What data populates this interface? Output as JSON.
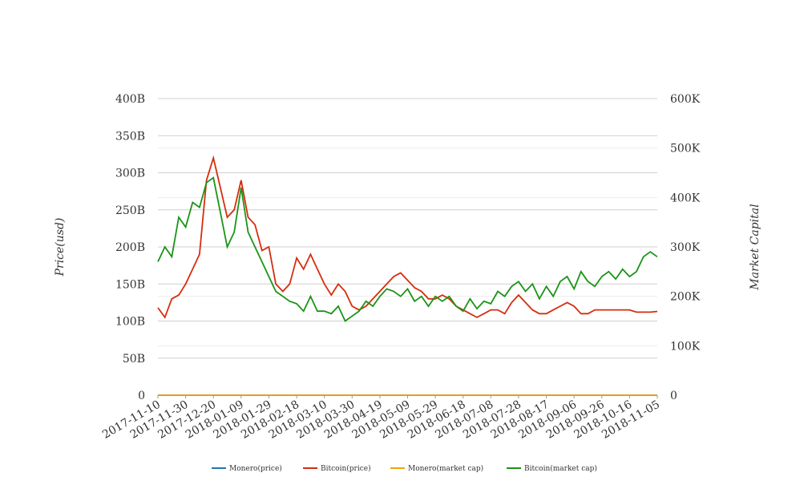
{
  "chart_data": {
    "type": "line",
    "x": [
      "2017-11-10",
      "2017-11-15",
      "2017-11-20",
      "2017-11-25",
      "2017-11-30",
      "2017-12-05",
      "2017-12-10",
      "2017-12-15",
      "2017-12-20",
      "2017-12-25",
      "2017-12-30",
      "2018-01-04",
      "2018-01-09",
      "2018-01-14",
      "2018-01-19",
      "2018-01-24",
      "2018-01-29",
      "2018-02-03",
      "2018-02-08",
      "2018-02-13",
      "2018-02-18",
      "2018-02-23",
      "2018-02-28",
      "2018-03-05",
      "2018-03-10",
      "2018-03-15",
      "2018-03-20",
      "2018-03-25",
      "2018-03-30",
      "2018-04-04",
      "2018-04-09",
      "2018-04-14",
      "2018-04-19",
      "2018-04-24",
      "2018-04-29",
      "2018-05-04",
      "2018-05-09",
      "2018-05-14",
      "2018-05-19",
      "2018-05-24",
      "2018-05-29",
      "2018-06-03",
      "2018-06-08",
      "2018-06-13",
      "2018-06-18",
      "2018-06-23",
      "2018-06-28",
      "2018-07-03",
      "2018-07-08",
      "2018-07-13",
      "2018-07-18",
      "2018-07-23",
      "2018-07-28",
      "2018-08-02",
      "2018-08-07",
      "2018-08-12",
      "2018-08-17",
      "2018-08-22",
      "2018-08-27",
      "2018-09-01",
      "2018-09-06",
      "2018-09-11",
      "2018-09-16",
      "2018-09-21",
      "2018-09-26",
      "2018-10-01",
      "2018-10-06",
      "2018-10-11",
      "2018-10-16",
      "2018-10-21",
      "2018-10-26",
      "2018-10-31",
      "2018-11-05"
    ],
    "xlim": [
      "2017-11-10",
      "2018-11-05"
    ],
    "xticks": [
      "2017-11-10",
      "2017-11-30",
      "2017-12-20",
      "2018-01-09",
      "2018-01-29",
      "2018-02-18",
      "2018-03-10",
      "2018-03-30",
      "2018-04-19",
      "2018-05-09",
      "2018-05-29",
      "2018-06-18",
      "2018-07-08",
      "2018-07-28",
      "2018-08-17",
      "2018-09-06",
      "2018-09-26",
      "2018-10-16",
      "2018-11-05"
    ],
    "ylabel": "Price(usd)",
    "y2label": "Market Capital",
    "ylim": [
      0,
      400000000000.0
    ],
    "yticks": [
      0,
      {
        "value": 50000000000.0,
        "label": "50B"
      },
      {
        "value": 100000000000.0,
        "label": "100B"
      },
      {
        "value": 150000000000.0,
        "label": "150B"
      },
      {
        "value": 200000000000.0,
        "label": "200B"
      },
      {
        "value": 250000000000.0,
        "label": "250B"
      },
      {
        "value": 300000000000.0,
        "label": "300B"
      },
      {
        "value": 350000000000.0,
        "label": "350B"
      },
      {
        "value": 400000000000.0,
        "label": "400B"
      }
    ],
    "y2lim": [
      0,
      600000.0
    ],
    "y2ticks": [
      0,
      {
        "value": 100000.0,
        "label": "100K"
      },
      {
        "value": 200000.0,
        "label": "200K"
      },
      {
        "value": 300000.0,
        "label": "300K"
      },
      {
        "value": 400000.0,
        "label": "400K"
      },
      {
        "value": 500000.0,
        "label": "500K"
      },
      {
        "value": 600000.0,
        "label": "600K"
      }
    ],
    "grid": true,
    "series": [
      {
        "name": "Monero(price)",
        "color": "#1f77b4",
        "values": [
          0,
          0,
          0,
          0,
          0,
          0,
          0,
          0,
          0,
          0,
          0,
          0,
          0,
          0,
          0,
          0,
          0,
          0,
          0,
          0,
          0,
          0,
          0,
          0,
          0,
          0,
          0,
          0,
          0,
          0,
          0,
          0,
          0,
          0,
          0,
          0,
          0,
          0,
          0,
          0,
          0,
          0,
          0,
          0,
          0,
          0,
          0,
          0,
          0,
          0,
          0,
          0,
          0,
          0,
          0,
          0,
          0,
          0,
          0,
          0,
          0,
          0,
          0,
          0,
          0,
          0,
          0,
          0,
          0,
          0,
          0,
          0,
          0
        ]
      },
      {
        "name": "Bitcoin(price)",
        "color": "#d62d0e",
        "values": [
          118000000000.0,
          105000000000.0,
          130000000000.0,
          135000000000.0,
          150000000000.0,
          170000000000.0,
          190000000000.0,
          290000000000.0,
          320000000000.0,
          280000000000.0,
          240000000000.0,
          250000000000.0,
          290000000000.0,
          240000000000.0,
          230000000000.0,
          195000000000.0,
          200000000000.0,
          150000000000.0,
          140000000000.0,
          150000000000.0,
          185000000000.0,
          170000000000.0,
          190000000000.0,
          170000000000.0,
          150000000000.0,
          135000000000.0,
          150000000000.0,
          140000000000.0,
          120000000000.0,
          115000000000.0,
          120000000000.0,
          130000000000.0,
          140000000000.0,
          150000000000.0,
          160000000000.0,
          165000000000.0,
          155000000000.0,
          145000000000.0,
          140000000000.0,
          130000000000.0,
          130000000000.0,
          135000000000.0,
          130000000000.0,
          120000000000.0,
          115000000000.0,
          110000000000.0,
          105000000000.0,
          110000000000.0,
          115000000000.0,
          115000000000.0,
          110000000000.0,
          125000000000.0,
          135000000000.0,
          125000000000.0,
          115000000000.0,
          110000000000.0,
          110000000000.0,
          115000000000.0,
          120000000000.0,
          125000000000.0,
          120000000000.0,
          110000000000.0,
          110000000000.0,
          115000000000.0,
          115000000000.0,
          115000000000.0,
          115000000000.0,
          115000000000.0,
          115000000000.0,
          112000000000.0,
          112000000000.0,
          112000000000.0,
          113000000000.0
        ]
      },
      {
        "name": "Monero(market cap)",
        "color": "#f0a30a",
        "axis": "y2",
        "values": [
          0,
          0,
          0,
          0,
          0,
          0,
          0,
          0,
          0,
          0,
          0,
          0,
          0,
          0,
          0,
          0,
          0,
          0,
          0,
          0,
          0,
          0,
          0,
          0,
          0,
          0,
          0,
          0,
          0,
          0,
          0,
          0,
          0,
          0,
          0,
          0,
          0,
          0,
          0,
          0,
          0,
          0,
          0,
          0,
          0,
          0,
          0,
          0,
          0,
          0,
          0,
          0,
          0,
          0,
          0,
          0,
          0,
          0,
          0,
          0,
          0,
          0,
          0,
          0,
          0,
          0,
          0,
          0,
          0,
          0,
          0,
          0,
          0
        ]
      },
      {
        "name": "Bitcoin(market cap)",
        "color": "#1a9416",
        "axis": "y2",
        "values": [
          270000.0,
          300000.0,
          280000.0,
          360000.0,
          340000.0,
          390000.0,
          380000.0,
          430000.0,
          440000.0,
          370000.0,
          300000.0,
          330000.0,
          420000.0,
          330000.0,
          300000.0,
          270000.0,
          240000.0,
          210000.0,
          200000.0,
          190000.0,
          185000.0,
          170000.0,
          200000.0,
          170000.0,
          170000.0,
          165000.0,
          180000.0,
          150000.0,
          160000.0,
          170000.0,
          190000.0,
          180000.0,
          200000.0,
          215000.0,
          210000.0,
          200000.0,
          215000.0,
          190000.0,
          200000.0,
          180000.0,
          200000.0,
          190000.0,
          200000.0,
          180000.0,
          170000.0,
          195000.0,
          175000.0,
          190000.0,
          185000.0,
          210000.0,
          200000.0,
          220000.0,
          230000.0,
          210000.0,
          225000.0,
          195000.0,
          220000.0,
          200000.0,
          230000.0,
          240000.0,
          215000.0,
          250000.0,
          230000.0,
          220000.0,
          240000.0,
          250000.0,
          235000.0,
          255000.0,
          240000.0,
          250000.0,
          280000.0,
          290000.0,
          280000.0
        ]
      }
    ]
  }
}
